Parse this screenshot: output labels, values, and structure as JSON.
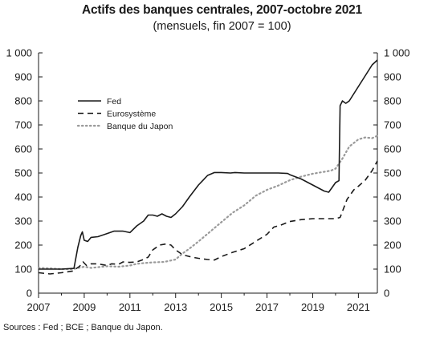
{
  "chart_data": {
    "type": "line",
    "title": "Actifs des banques centrales, 2007-octobre 2021",
    "subtitle": "(mensuels, fin 2007 = 100)",
    "source": "Sources : Fed ; BCE ; Banque du Japon.",
    "xlim": [
      2007,
      2021.83
    ],
    "ylim": [
      0,
      1000
    ],
    "x_ticks": [
      2007,
      2009,
      2011,
      2013,
      2015,
      2017,
      2019,
      2021
    ],
    "y_ticks": [
      0,
      100,
      200,
      300,
      400,
      500,
      600,
      700,
      800,
      900,
      1000
    ],
    "y_tick_labels": [
      "0",
      "100",
      "200",
      "300",
      "400",
      "500",
      "600",
      "700",
      "800",
      "900",
      "1 000"
    ],
    "y_axis_right": true,
    "grid": false,
    "legend_position": "top-left",
    "series": [
      {
        "name": "Fed",
        "style": "solid",
        "color": "#1a1a1a",
        "points": [
          [
            2007.0,
            100
          ],
          [
            2008.0,
            100
          ],
          [
            2008.55,
            103
          ],
          [
            2008.72,
            190
          ],
          [
            2008.85,
            240
          ],
          [
            2008.92,
            255
          ],
          [
            2009.0,
            220
          ],
          [
            2009.15,
            215
          ],
          [
            2009.3,
            232
          ],
          [
            2009.6,
            235
          ],
          [
            2010.0,
            248
          ],
          [
            2010.3,
            258
          ],
          [
            2010.7,
            258
          ],
          [
            2011.0,
            252
          ],
          [
            2011.3,
            280
          ],
          [
            2011.6,
            300
          ],
          [
            2011.8,
            325
          ],
          [
            2012.0,
            325
          ],
          [
            2012.2,
            320
          ],
          [
            2012.4,
            330
          ],
          [
            2012.6,
            320
          ],
          [
            2012.8,
            315
          ],
          [
            2013.0,
            330
          ],
          [
            2013.3,
            360
          ],
          [
            2013.6,
            400
          ],
          [
            2014.0,
            450
          ],
          [
            2014.4,
            490
          ],
          [
            2014.7,
            502
          ],
          [
            2015.0,
            502
          ],
          [
            2015.4,
            500
          ],
          [
            2015.6,
            502
          ],
          [
            2016.0,
            500
          ],
          [
            2017.0,
            500
          ],
          [
            2017.5,
            500
          ],
          [
            2017.9,
            498
          ],
          [
            2018.0,
            493
          ],
          [
            2018.5,
            475
          ],
          [
            2019.0,
            450
          ],
          [
            2019.5,
            425
          ],
          [
            2019.7,
            420
          ],
          [
            2019.85,
            440
          ],
          [
            2020.0,
            460
          ],
          [
            2020.15,
            468
          ],
          [
            2020.2,
            780
          ],
          [
            2020.3,
            800
          ],
          [
            2020.45,
            790
          ],
          [
            2020.6,
            800
          ],
          [
            2020.8,
            830
          ],
          [
            2021.0,
            860
          ],
          [
            2021.2,
            890
          ],
          [
            2021.4,
            920
          ],
          [
            2021.6,
            950
          ],
          [
            2021.83,
            970
          ]
        ]
      },
      {
        "name": "Eurosystème",
        "style": "dashed",
        "color": "#1a1a1a",
        "points": [
          [
            2007.0,
            85
          ],
          [
            2007.5,
            80
          ],
          [
            2008.0,
            85
          ],
          [
            2008.5,
            92
          ],
          [
            2008.8,
            112
          ],
          [
            2008.95,
            130
          ],
          [
            2009.1,
            115
          ],
          [
            2009.3,
            122
          ],
          [
            2009.6,
            122
          ],
          [
            2010.0,
            115
          ],
          [
            2010.2,
            122
          ],
          [
            2010.5,
            120
          ],
          [
            2010.7,
            130
          ],
          [
            2011.0,
            128
          ],
          [
            2011.3,
            130
          ],
          [
            2011.6,
            140
          ],
          [
            2011.8,
            150
          ],
          [
            2012.0,
            180
          ],
          [
            2012.3,
            200
          ],
          [
            2012.6,
            205
          ],
          [
            2012.8,
            200
          ],
          [
            2013.0,
            180
          ],
          [
            2013.3,
            160
          ],
          [
            2013.7,
            150
          ],
          [
            2014.0,
            145
          ],
          [
            2014.4,
            140
          ],
          [
            2014.7,
            138
          ],
          [
            2015.0,
            152
          ],
          [
            2015.5,
            170
          ],
          [
            2016.0,
            185
          ],
          [
            2016.5,
            215
          ],
          [
            2017.0,
            245
          ],
          [
            2017.3,
            275
          ],
          [
            2017.6,
            283
          ],
          [
            2018.0,
            298
          ],
          [
            2018.5,
            306
          ],
          [
            2019.0,
            310
          ],
          [
            2019.5,
            310
          ],
          [
            2020.0,
            310
          ],
          [
            2020.2,
            315
          ],
          [
            2020.5,
            390
          ],
          [
            2020.8,
            430
          ],
          [
            2021.0,
            445
          ],
          [
            2021.3,
            470
          ],
          [
            2021.6,
            510
          ],
          [
            2021.83,
            550
          ]
        ]
      },
      {
        "name": "Banque du Japon",
        "style": "dotted",
        "color": "#9a9a9a",
        "points": [
          [
            2007.0,
            105
          ],
          [
            2007.5,
            103
          ],
          [
            2008.0,
            100
          ],
          [
            2008.5,
            100
          ],
          [
            2009.0,
            110
          ],
          [
            2009.3,
            105
          ],
          [
            2009.6,
            108
          ],
          [
            2010.0,
            112
          ],
          [
            2010.5,
            110
          ],
          [
            2011.0,
            115
          ],
          [
            2011.3,
            122
          ],
          [
            2011.6,
            125
          ],
          [
            2012.0,
            128
          ],
          [
            2012.5,
            130
          ],
          [
            2013.0,
            140
          ],
          [
            2013.3,
            165
          ],
          [
            2013.6,
            185
          ],
          [
            2014.0,
            215
          ],
          [
            2014.5,
            255
          ],
          [
            2015.0,
            295
          ],
          [
            2015.5,
            335
          ],
          [
            2016.0,
            365
          ],
          [
            2016.5,
            405
          ],
          [
            2017.0,
            430
          ],
          [
            2017.5,
            448
          ],
          [
            2018.0,
            470
          ],
          [
            2018.5,
            485
          ],
          [
            2019.0,
            497
          ],
          [
            2019.5,
            505
          ],
          [
            2019.8,
            510
          ],
          [
            2020.0,
            518
          ],
          [
            2020.3,
            560
          ],
          [
            2020.6,
            610
          ],
          [
            2021.0,
            640
          ],
          [
            2021.3,
            648
          ],
          [
            2021.6,
            645
          ],
          [
            2021.83,
            655
          ]
        ]
      }
    ]
  }
}
